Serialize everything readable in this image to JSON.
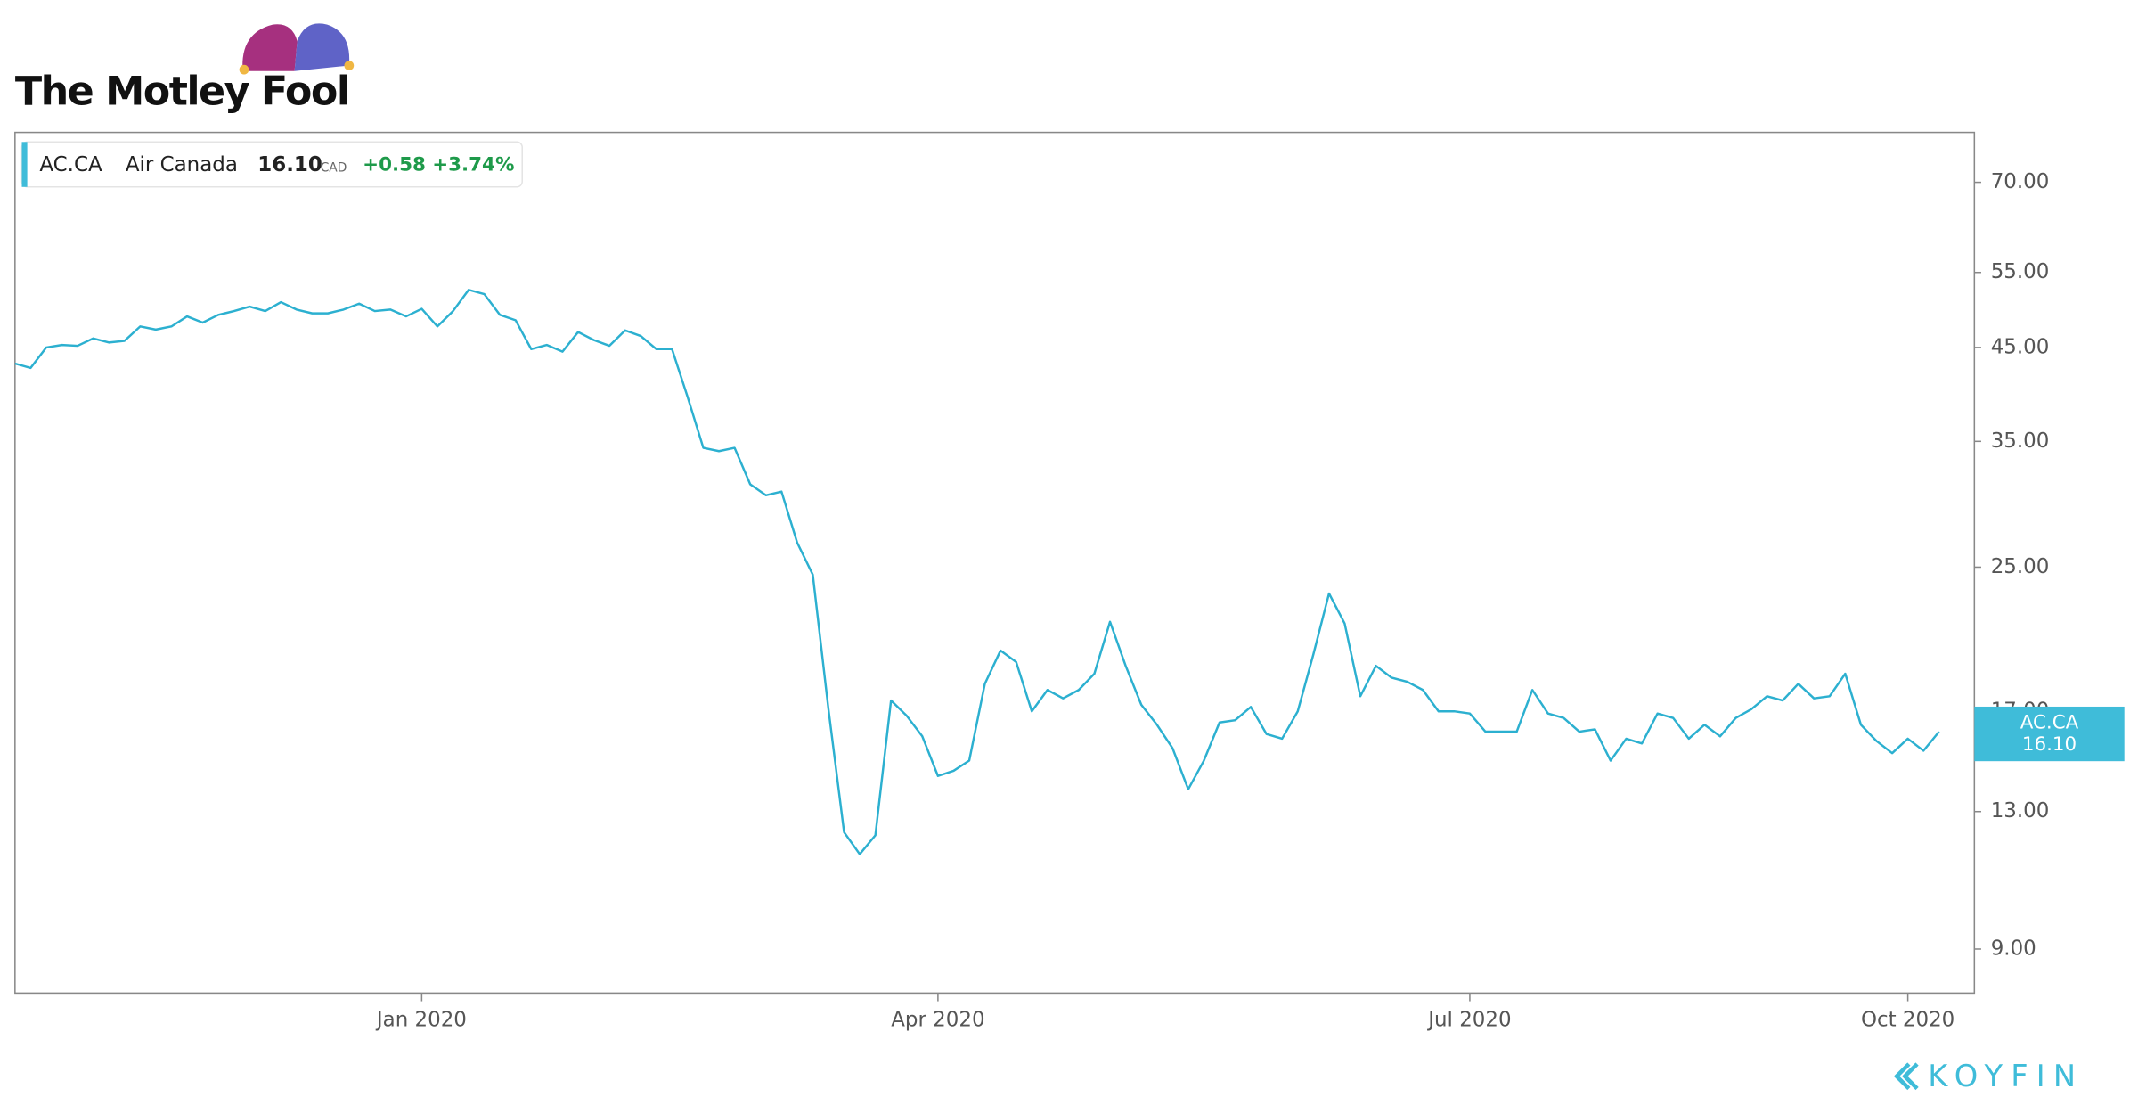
{
  "logo": {
    "brand": "The Motley Fool",
    "source": "KOYFIN"
  },
  "chart_data": {
    "type": "line",
    "ticker": "AC.CA",
    "name": "Air Canada",
    "price": "16.10",
    "currency": "CAD",
    "change": "+0.58",
    "change_percent": "+3.74%",
    "log_scale": true,
    "grid": false,
    "ylim": [
      8,
      80
    ],
    "yticks": [
      {
        "value": 9,
        "label": "9.00"
      },
      {
        "value": 13,
        "label": "13.00"
      },
      {
        "value": 17,
        "label": "17.00"
      },
      {
        "value": 25,
        "label": "25.00"
      },
      {
        "value": 35,
        "label": "35.00"
      },
      {
        "value": 45,
        "label": "45.00"
      },
      {
        "value": 55,
        "label": "55.00"
      },
      {
        "value": 70,
        "label": "70.00"
      }
    ],
    "categories": [
      null,
      null,
      null,
      null,
      null,
      null,
      null,
      null,
      null,
      null,
      null,
      null,
      null,
      null,
      null,
      null,
      null,
      null,
      null,
      null,
      null,
      null,
      null,
      null,
      null,
      null,
      "Jan 2020",
      null,
      null,
      null,
      null,
      null,
      null,
      null,
      null,
      null,
      null,
      null,
      null,
      null,
      null,
      null,
      null,
      null,
      null,
      null,
      null,
      null,
      null,
      null,
      null,
      null,
      null,
      null,
      null,
      null,
      null,
      null,
      null,
      "Apr 2020",
      null,
      null,
      null,
      null,
      null,
      null,
      null,
      null,
      null,
      null,
      null,
      null,
      null,
      null,
      null,
      null,
      null,
      null,
      null,
      null,
      null,
      null,
      null,
      null,
      null,
      null,
      null,
      null,
      null,
      null,
      null,
      null,
      null,
      "Jul 2020",
      null,
      null,
      null,
      null,
      null,
      null,
      null,
      null,
      null,
      null,
      null,
      null,
      null,
      null,
      null,
      null,
      null,
      null,
      null,
      null,
      null,
      null,
      null,
      null,
      null,
      null,
      null,
      "Oct 2020",
      null,
      null
    ],
    "series": [
      {
        "name": "AC.CA",
        "color": "#2cb0d0",
        "values": [
          43.1,
          42.6,
          45.0,
          45.3,
          45.2,
          46.1,
          45.6,
          45.8,
          47.6,
          47.2,
          47.6,
          48.9,
          48.1,
          49.1,
          49.6,
          50.2,
          49.6,
          50.8,
          49.8,
          49.3,
          49.3,
          49.8,
          50.6,
          49.6,
          49.8,
          48.9,
          49.9,
          47.6,
          49.6,
          52.5,
          51.9,
          49.1,
          48.4,
          44.8,
          45.3,
          44.5,
          46.9,
          45.9,
          45.2,
          47.1,
          46.4,
          44.8,
          44.8,
          39.4,
          34.4,
          34.1,
          34.4,
          31.2,
          30.3,
          30.6,
          26.7,
          24.5,
          17.1,
          12.3,
          11.6,
          12.2,
          17.5,
          16.8,
          15.9,
          14.3,
          14.5,
          14.9,
          18.3,
          20.0,
          19.4,
          17.0,
          18.0,
          17.6,
          18.0,
          18.8,
          21.6,
          19.2,
          17.3,
          16.4,
          15.4,
          13.8,
          14.9,
          16.5,
          16.6,
          17.2,
          16.0,
          15.8,
          17.0,
          19.8,
          23.3,
          21.5,
          17.7,
          19.2,
          18.6,
          18.4,
          18.0,
          17.0,
          17.0,
          16.9,
          16.1,
          16.1,
          16.1,
          18.0,
          16.9,
          16.7,
          16.1,
          16.2,
          14.9,
          15.8,
          15.6,
          16.9,
          16.7,
          15.8,
          16.4,
          15.9,
          16.7,
          17.1,
          17.7,
          17.5,
          18.3,
          17.6,
          17.7,
          18.8,
          16.4,
          15.7,
          15.2,
          15.8,
          15.3,
          16.1
        ]
      }
    ]
  }
}
